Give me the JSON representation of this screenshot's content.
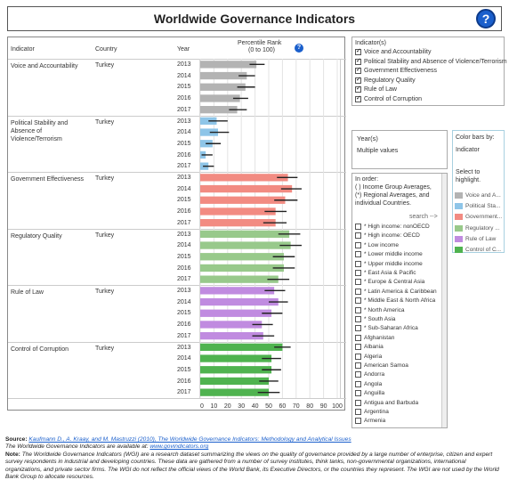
{
  "title": "Worldwide Governance Indicators",
  "help_glyph": "?",
  "table": {
    "col_indicator": "Indicator",
    "col_country": "Country",
    "col_year": "Year",
    "col_rank": "Percentile Rank",
    "col_rank_sub": "(0 to 100)"
  },
  "chart_data": {
    "type": "bar",
    "orientation": "horizontal",
    "xlim": [
      0,
      100
    ],
    "xticks": [
      "0",
      "10",
      "20",
      "30",
      "40",
      "50",
      "60",
      "70",
      "80",
      "90",
      "100"
    ],
    "country": "Turkey",
    "years": [
      "2013",
      "2014",
      "2015",
      "2016",
      "2017"
    ],
    "series": [
      {
        "name": "Voice and Accountability",
        "color": "#b3b3b3",
        "values": [
          41,
          34,
          33,
          29,
          27
        ],
        "lower": [
          36,
          28,
          27,
          24,
          21
        ],
        "upper": [
          47,
          40,
          40,
          35,
          34
        ]
      },
      {
        "name": "Political Stability and Absence of Violence/Terrorism",
        "color": "#8ec5e8",
        "values": [
          12,
          13,
          9,
          4,
          6
        ],
        "lower": [
          6,
          7,
          4,
          1,
          2
        ],
        "upper": [
          20,
          21,
          15,
          9,
          10
        ]
      },
      {
        "name": "Government Effectiveness",
        "color": "#f28b82",
        "values": [
          64,
          67,
          62,
          55,
          55
        ],
        "lower": [
          56,
          59,
          54,
          47,
          46
        ],
        "upper": [
          71,
          74,
          71,
          63,
          63
        ]
      },
      {
        "name": "Regulatory Quality",
        "color": "#98c98b",
        "values": [
          65,
          66,
          61,
          61,
          57
        ],
        "lower": [
          57,
          58,
          53,
          53,
          49
        ],
        "upper": [
          73,
          74,
          69,
          69,
          65
        ]
      },
      {
        "name": "Rule of Law",
        "color": "#c08be0",
        "values": [
          54,
          57,
          52,
          45,
          46
        ],
        "lower": [
          47,
          50,
          45,
          38,
          38
        ],
        "upper": [
          62,
          64,
          60,
          53,
          54
        ]
      },
      {
        "name": "Control of Corruption",
        "color": "#4fb34f",
        "values": [
          60,
          52,
          52,
          50,
          50
        ],
        "lower": [
          54,
          45,
          45,
          43,
          42
        ],
        "upper": [
          66,
          59,
          59,
          57,
          58
        ]
      }
    ]
  },
  "indicator_filter": {
    "title": "Indicator(s)",
    "items": [
      "Voice and Accountability",
      "Political Stability and Absence of Violence/Terrorism",
      "Government Effectiveness",
      "Regulatory Quality",
      "Rule of Law",
      "Control of Corruption"
    ]
  },
  "year_filter": {
    "title": "Year(s)",
    "value": "Multiple values"
  },
  "color_legend": {
    "title": "Color bars by:",
    "sub": "Indicator",
    "hint_line1": "Select to",
    "hint_line2": "highlight.",
    "items": [
      {
        "label": "Voice and A...",
        "color": "#b3b3b3"
      },
      {
        "label": "Political Sta...",
        "color": "#8ec5e8"
      },
      {
        "label": "Government...",
        "color": "#f28b82"
      },
      {
        "label": "Regulatory ...",
        "color": "#98c98b"
      },
      {
        "label": "Rule of Law",
        "color": "#c08be0"
      },
      {
        "label": "Control of C...",
        "color": "#4fb34f"
      }
    ]
  },
  "country_filter": {
    "intro_1": "In order:",
    "intro_2": "( ) Income Group Averages,",
    "intro_3": "(*) Regional Averages, and",
    "intro_4": "individual Countries.",
    "search": "search -->",
    "items": [
      "* High income: nonOECD",
      "* High income: OECD",
      "* Low income",
      "* Lower middle income",
      "* Upper middle income",
      "* East Asia & Pacific",
      "* Europe & Central Asia",
      "* Latin America & Caribbean",
      "* Middle East & North Africa",
      "* North America",
      "* South Asia",
      "* Sub-Saharan Africa",
      "Afghanistan",
      "Albania",
      "Algeria",
      "American Samoa",
      "Andorra",
      "Angola",
      "Anguilla",
      "Antigua and Barbuda",
      "Argentina",
      "Armenia"
    ]
  },
  "footer": {
    "source_label": "Source:",
    "source_link": "Kaufmann D., A. Kraay, and M. Mastruzzi (2010), The Worldwide Governance Indicators: Methodology and Analytical Issues",
    "avail_text": "The Worldwide Governance Indicators are available at:",
    "avail_link": "www.govindicators.org",
    "note_label": "Note:",
    "note_text": "The Worldwide Governance Indicators (WGI) are a research dataset summarizing the views on the quality of governance provided by a large number of enterprise, citizen and expert survey respondents in industrial and developing countries. These data are gathered from a number of survey institutes, think tanks, non-governmental organizations, international organizations, and private sector firms. The WGI do not reflect the official views of the World Bank, its Executive Directors, or the countries they represent. The WGI are not used by the World Bank Group to allocate resources."
  }
}
